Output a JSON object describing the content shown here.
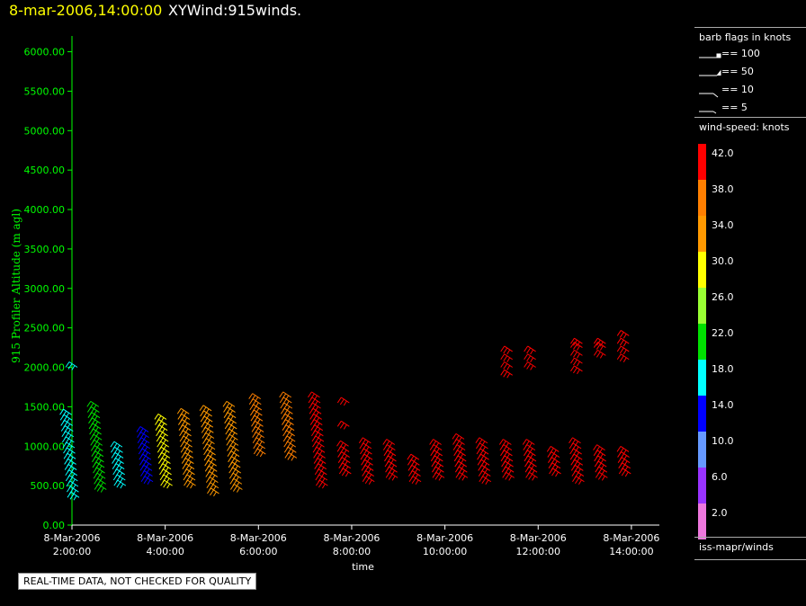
{
  "header": {
    "time": "8-mar-2006,14:00:00",
    "title": "XYWind:915winds."
  },
  "chart_data": {
    "type": "wind-barb time-height plot",
    "ylabel": "915 Profiler Altitude (m agl)",
    "xlabel": "time",
    "ylim": [
      0,
      6200
    ],
    "yticks": [
      "0.00",
      "500.00",
      "1000.00",
      "1500.00",
      "2000.00",
      "2500.00",
      "3000.00",
      "3500.00",
      "4000.00",
      "4500.00",
      "5000.00",
      "5500.00",
      "6000.00"
    ],
    "xlim_hours": [
      2,
      14.6
    ],
    "xticks": [
      {
        "date": "8-Mar-2006",
        "time": "2:00:00"
      },
      {
        "date": "8-Mar-2006",
        "time": "4:00:00"
      },
      {
        "date": "8-Mar-2006",
        "time": "6:00:00"
      },
      {
        "date": "8-Mar-2006",
        "time": "8:00:00"
      },
      {
        "date": "8-Mar-2006",
        "time": "10:00:00"
      },
      {
        "date": "8-Mar-2006",
        "time": "12:00:00"
      },
      {
        "date": "8-Mar-2006",
        "time": "14:00:00"
      }
    ],
    "axis_color": "#00ff00",
    "profiles": [
      {
        "time": "02:00",
        "from": 350,
        "to": 1450,
        "speed": 18,
        "extra": [
          2000
        ]
      },
      {
        "time": "02:35",
        "from": 450,
        "to": 1550,
        "speed": 20
      },
      {
        "time": "03:00",
        "from": 500,
        "to": 1050,
        "speed": 16
      },
      {
        "time": "03:35",
        "from": 550,
        "to": 1200,
        "speed": 14
      },
      {
        "time": "04:00",
        "from": 500,
        "to": 1400,
        "speed": 28
      },
      {
        "time": "04:30",
        "from": 500,
        "to": 1450,
        "speed": 32
      },
      {
        "time": "05:00",
        "from": 400,
        "to": 1450,
        "speed": 34
      },
      {
        "time": "05:30",
        "from": 450,
        "to": 1550,
        "speed": 35
      },
      {
        "time": "06:00",
        "from": 900,
        "to": 1650,
        "speed": 36
      },
      {
        "time": "06:40",
        "from": 850,
        "to": 1650,
        "speed": 37
      },
      {
        "time": "07:20",
        "from": 500,
        "to": 1650,
        "speed": 42
      },
      {
        "time": "07:50",
        "from": 650,
        "to": 1000,
        "speed": 42,
        "extra": [
          1250,
          1550
        ]
      },
      {
        "time": "08:20",
        "from": 550,
        "to": 1100,
        "speed": 42
      },
      {
        "time": "08:50",
        "from": 600,
        "to": 1050,
        "speed": 42
      },
      {
        "time": "09:20",
        "from": 550,
        "to": 850,
        "speed": 42
      },
      {
        "time": "09:50",
        "from": 600,
        "to": 1050,
        "speed": 40
      },
      {
        "time": "10:20",
        "from": 600,
        "to": 1150,
        "speed": 42
      },
      {
        "time": "10:50",
        "from": 550,
        "to": 1050,
        "speed": 40
      },
      {
        "time": "11:20",
        "from": 600,
        "to": 1050,
        "speed": 42,
        "extra": [
          1900,
          2000,
          2100,
          2200
        ]
      },
      {
        "time": "11:50",
        "from": 600,
        "to": 1050,
        "speed": 42,
        "extra": [
          2000,
          2100,
          2200
        ]
      },
      {
        "time": "12:20",
        "from": 650,
        "to": 950,
        "speed": 42
      },
      {
        "time": "12:50",
        "from": 550,
        "to": 1050,
        "speed": 42,
        "extra": [
          1950,
          2050,
          2150,
          2250,
          2300
        ]
      },
      {
        "time": "13:20",
        "from": 600,
        "to": 1000,
        "speed": 42,
        "extra": [
          2150,
          2250,
          2300
        ]
      },
      {
        "time": "13:50",
        "from": 650,
        "to": 950,
        "speed": 42,
        "extra": [
          2100,
          2200,
          2300,
          2400
        ]
      }
    ]
  },
  "legend": {
    "barb_title": "barb flags in knots",
    "barbs": [
      "== 100",
      "== 50",
      "== 10",
      "== 5"
    ],
    "speed_title": "wind-speed: knots",
    "scale": [
      {
        "label": "42.0",
        "color": "#ff0000"
      },
      {
        "label": "38.0",
        "color": "#ff7f00"
      },
      {
        "label": "34.0",
        "color": "#ff9900"
      },
      {
        "label": "30.0",
        "color": "#ffff00"
      },
      {
        "label": "26.0",
        "color": "#99ff33"
      },
      {
        "label": "22.0",
        "color": "#00e000"
      },
      {
        "label": "18.0",
        "color": "#00ffff"
      },
      {
        "label": "14.0",
        "color": "#0000ff"
      },
      {
        "label": "10.0",
        "color": "#6699ff"
      },
      {
        "label": "6.0",
        "color": "#9933ff"
      },
      {
        "label": "2.0",
        "color": "#ee77dd"
      }
    ],
    "source": "iss-mapr/winds"
  },
  "note": "REAL-TIME DATA, NOT CHECKED FOR QUALITY"
}
